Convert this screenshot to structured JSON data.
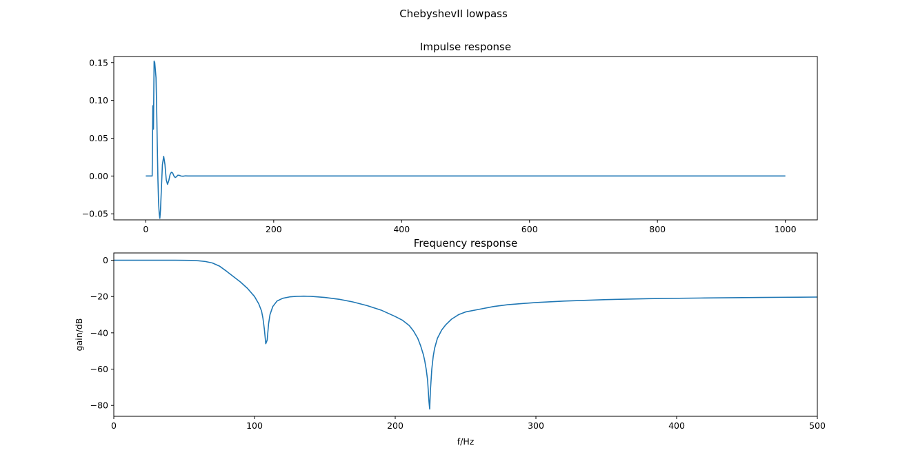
{
  "figure": {
    "title": "ChebyshevII lowpass"
  },
  "colors": {
    "series": "#1f77b4",
    "axes": "#000000",
    "background": "#ffffff"
  },
  "chart_data": [
    {
      "type": "line",
      "title": "Impulse response",
      "xlabel": "",
      "ylabel": "",
      "xlim": [
        -50,
        1050
      ],
      "ylim": [
        -0.058,
        0.158
      ],
      "xticks": [
        0,
        200,
        400,
        600,
        800,
        1000
      ],
      "xtick_labels": [
        "0",
        "200",
        "400",
        "600",
        "800",
        "1000"
      ],
      "yticks": [
        -0.05,
        0.0,
        0.05,
        0.1,
        0.15
      ],
      "ytick_labels": [
        "−0.05",
        "0.00",
        "0.05",
        "0.10",
        "0.15"
      ],
      "grid": false,
      "series": [
        {
          "x": [
            0,
            10,
            11,
            12,
            13,
            14,
            16,
            17,
            18,
            19,
            20,
            21,
            22,
            23,
            24,
            26,
            28,
            30,
            32,
            34,
            36,
            38,
            40,
            42,
            44,
            46,
            48,
            50,
            52,
            55,
            58,
            62,
            66,
            70,
            80,
            100,
            200,
            400,
            600,
            800,
            1000
          ],
          "y": [
            0,
            0,
            0.093,
            0.062,
            0.152,
            0.15,
            0.13,
            0.09,
            0.04,
            -0.005,
            -0.035,
            -0.05,
            -0.056,
            -0.045,
            -0.025,
            0.015,
            0.026,
            0.015,
            -0.005,
            -0.011,
            -0.006,
            0.002,
            0.005,
            0.004,
            0.0,
            -0.002,
            -0.001,
            0.001,
            0.001,
            0.0,
            -0.0003,
            0.0002,
            0.0,
            0.0,
            0.0,
            0.0,
            0.0,
            0.0,
            0.0,
            0.0,
            0.0
          ]
        }
      ]
    },
    {
      "type": "line",
      "title": "Frequency response",
      "xlabel": "f/Hz",
      "ylabel": "gain/dB",
      "xlim": [
        0,
        500
      ],
      "ylim": [
        -86,
        4
      ],
      "xticks": [
        0,
        100,
        200,
        300,
        400,
        500
      ],
      "xtick_labels": [
        "0",
        "100",
        "200",
        "300",
        "400",
        "500"
      ],
      "yticks": [
        -80,
        -60,
        -40,
        -20,
        0
      ],
      "ytick_labels": [
        "−80",
        "−60",
        "−40",
        "−20",
        "0"
      ],
      "grid": false,
      "series": [
        {
          "x": [
            0,
            20,
            40,
            50,
            55,
            60,
            65,
            70,
            75,
            80,
            85,
            90,
            95,
            100,
            103,
            105,
            106,
            107,
            108,
            109,
            110,
            111,
            113,
            116,
            120,
            125,
            130,
            135,
            140,
            150,
            160,
            170,
            180,
            190,
            200,
            205,
            210,
            213,
            216,
            218,
            220,
            221,
            222,
            223,
            224,
            224.5,
            225,
            226,
            227,
            228,
            230,
            233,
            236,
            240,
            245,
            250,
            260,
            270,
            280,
            300,
            320,
            350,
            380,
            420,
            460,
            500
          ],
          "y": [
            0,
            0,
            0,
            -0.05,
            -0.1,
            -0.3,
            -0.7,
            -1.5,
            -3.2,
            -6,
            -9,
            -12,
            -15.5,
            -20,
            -24,
            -28,
            -32,
            -38,
            -46,
            -44,
            -35,
            -30,
            -25.5,
            -22.5,
            -21,
            -20.2,
            -19.9,
            -19.8,
            -19.9,
            -20.5,
            -21.5,
            -23,
            -25,
            -27.5,
            -31,
            -33,
            -36,
            -39,
            -43,
            -47,
            -52,
            -55.5,
            -60,
            -66,
            -78,
            -82,
            -72,
            -60,
            -53,
            -48.5,
            -43,
            -38.5,
            -35.5,
            -32.5,
            -30,
            -28.5,
            -27,
            -25.5,
            -24.5,
            -23.3,
            -22.5,
            -21.7,
            -21.2,
            -20.8,
            -20.5,
            -20.3
          ]
        }
      ]
    }
  ]
}
